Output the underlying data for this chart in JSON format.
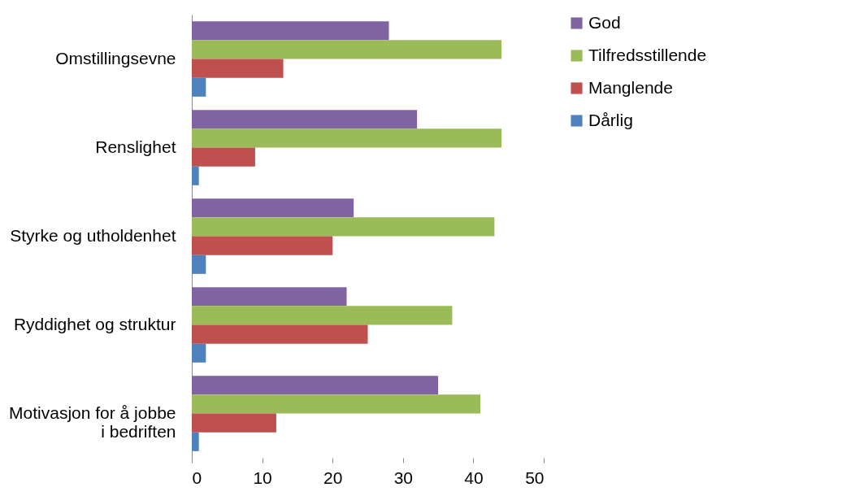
{
  "chart_data": {
    "type": "bar",
    "orientation": "horizontal",
    "categories": [
      "Omstillingsevne",
      "Renslighet",
      "Styrke og utholdenhet",
      "Ryddighet og struktur",
      "Motivasjon for å jobbe i bedriften"
    ],
    "series": [
      {
        "name": "God",
        "color": "#8064a2",
        "values": [
          28,
          32,
          23,
          22,
          35
        ]
      },
      {
        "name": "Tilfredsstillende",
        "color": "#9bbb59",
        "values": [
          44,
          44,
          43,
          37,
          41
        ]
      },
      {
        "name": "Manglende",
        "color": "#c0504d",
        "values": [
          13,
          9,
          20,
          25,
          12
        ]
      },
      {
        "name": "Dårlig",
        "color": "#4f81bd",
        "values": [
          2,
          1,
          2,
          2,
          1
        ]
      }
    ],
    "xlim": [
      0,
      50
    ],
    "xticks": [
      0,
      10,
      20,
      30,
      40,
      50
    ],
    "grid": false,
    "legend": "right"
  }
}
